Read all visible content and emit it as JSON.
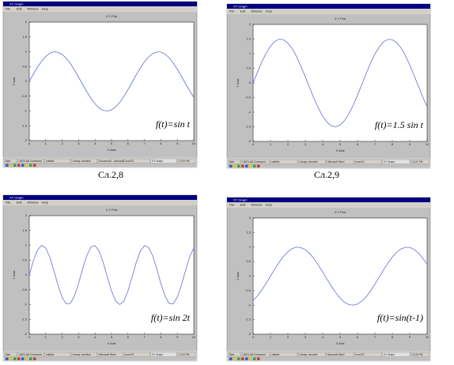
{
  "chart_data": [
    {
      "type": "line",
      "title": "X Y Plot",
      "xlabel": "X Axis",
      "ylabel": "Y Axis",
      "annotation": "f(t)=sin t",
      "color": "#6070d0",
      "xlim": [
        0,
        10
      ],
      "ylim": [
        -2,
        2
      ],
      "xticks": [
        0,
        1,
        2,
        3,
        4,
        5,
        6,
        7,
        8,
        9,
        10
      ],
      "yticks": [
        -2,
        -1.5,
        -1,
        -0.5,
        0,
        0.5,
        1,
        1.5,
        2
      ],
      "x": [
        0,
        0.25,
        0.5,
        0.75,
        1,
        1.25,
        1.5,
        1.75,
        2,
        2.25,
        2.5,
        2.75,
        3,
        3.25,
        3.5,
        3.75,
        4,
        4.25,
        4.5,
        4.75,
        5,
        5.25,
        5.5,
        5.75,
        6,
        6.25,
        6.5,
        6.75,
        7,
        7.25,
        7.5,
        7.75,
        8,
        8.25,
        8.5,
        8.75,
        9,
        9.25,
        9.5,
        9.75,
        10
      ],
      "values": [
        0,
        0.25,
        0.48,
        0.68,
        0.84,
        0.95,
        1,
        0.98,
        0.91,
        0.78,
        0.6,
        0.38,
        0.14,
        -0.11,
        -0.35,
        -0.57,
        -0.76,
        -0.9,
        -0.98,
        -1,
        -0.96,
        -0.86,
        -0.71,
        -0.51,
        -0.28,
        -0.03,
        0.22,
        0.45,
        0.66,
        0.82,
        0.94,
        0.99,
        0.99,
        0.92,
        0.8,
        0.62,
        0.41,
        0.17,
        -0.08,
        -0.32,
        -0.54
      ]
    },
    {
      "type": "line",
      "title": "X Y Plot",
      "xlabel": "X Axis",
      "ylabel": "Y Axis",
      "annotation": "f(t)=1.5 sin t",
      "color": "#6070d0",
      "xlim": [
        0,
        10
      ],
      "ylim": [
        -2,
        2
      ],
      "xticks": [
        0,
        1,
        2,
        3,
        4,
        5,
        6,
        7,
        8,
        9,
        10
      ],
      "yticks": [
        -2,
        -1.5,
        -1,
        -0.5,
        0,
        0.5,
        1,
        1.5,
        2
      ],
      "x": [
        0,
        0.25,
        0.5,
        0.75,
        1,
        1.25,
        1.5,
        1.75,
        2,
        2.25,
        2.5,
        2.75,
        3,
        3.25,
        3.5,
        3.75,
        4,
        4.25,
        4.5,
        4.75,
        5,
        5.25,
        5.5,
        5.75,
        6,
        6.25,
        6.5,
        6.75,
        7,
        7.25,
        7.5,
        7.75,
        8,
        8.25,
        8.5,
        8.75,
        9,
        9.25,
        9.5,
        9.75,
        10
      ],
      "values": [
        0,
        0.37,
        0.72,
        1.02,
        1.26,
        1.42,
        1.5,
        1.48,
        1.36,
        1.17,
        0.9,
        0.57,
        0.21,
        -0.16,
        -0.53,
        -0.86,
        -1.14,
        -1.34,
        -1.47,
        -1.5,
        -1.44,
        -1.29,
        -1.06,
        -0.77,
        -0.42,
        -0.05,
        0.32,
        0.68,
        0.99,
        1.23,
        1.41,
        1.49,
        1.48,
        1.38,
        1.2,
        0.94,
        0.62,
        0.26,
        -0.11,
        -0.48,
        -0.82
      ]
    },
    {
      "type": "line",
      "title": "X Y Plot",
      "xlabel": "X Axis",
      "ylabel": "Y Axis",
      "annotation": "f(t)=sin 2t",
      "color": "#6070d0",
      "xlim": [
        0,
        10
      ],
      "ylim": [
        -2,
        2
      ],
      "xticks": [
        0,
        1,
        2,
        3,
        4,
        5,
        6,
        7,
        8,
        9,
        10
      ],
      "yticks": [
        -2,
        -1.5,
        -1,
        -0.5,
        0,
        0.5,
        1,
        1.5,
        2
      ],
      "x": [
        0,
        0.25,
        0.5,
        0.75,
        1,
        1.25,
        1.5,
        1.75,
        2,
        2.25,
        2.5,
        2.75,
        3,
        3.25,
        3.5,
        3.75,
        4,
        4.25,
        4.5,
        4.75,
        5,
        5.25,
        5.5,
        5.75,
        6,
        6.25,
        6.5,
        6.75,
        7,
        7.25,
        7.5,
        7.75,
        8,
        8.25,
        8.5,
        8.75,
        9,
        9.25,
        9.5,
        9.75,
        10
      ],
      "values": [
        0,
        0.48,
        0.84,
        1,
        0.91,
        0.6,
        0.14,
        -0.35,
        -0.76,
        -0.98,
        -0.96,
        -0.71,
        -0.28,
        0.22,
        0.66,
        0.94,
        0.99,
        0.8,
        0.41,
        -0.08,
        -0.54,
        -0.88,
        -1,
        -0.88,
        -0.54,
        -0.07,
        0.42,
        0.8,
        0.99,
        0.93,
        0.65,
        0.21,
        -0.29,
        -0.71,
        -0.96,
        -0.98,
        -0.75,
        -0.34,
        0.15,
        0.61,
        0.91
      ]
    },
    {
      "type": "line",
      "title": "X Y Plot",
      "xlabel": "X Axis",
      "ylabel": "Y Axis",
      "annotation": "f(t)=sin(t-1)",
      "color": "#6070d0",
      "xlim": [
        0,
        10
      ],
      "ylim": [
        -2,
        2
      ],
      "xticks": [
        0,
        1,
        2,
        3,
        4,
        5,
        6,
        7,
        8,
        9,
        10
      ],
      "yticks": [
        -2,
        -1.5,
        -1,
        -0.5,
        0,
        0.5,
        1,
        1.5,
        2
      ],
      "x": [
        0,
        0.25,
        0.5,
        0.75,
        1,
        1.25,
        1.5,
        1.75,
        2,
        2.25,
        2.5,
        2.75,
        3,
        3.25,
        3.5,
        3.75,
        4,
        4.25,
        4.5,
        4.75,
        5,
        5.25,
        5.5,
        5.75,
        6,
        6.25,
        6.5,
        6.75,
        7,
        7.25,
        7.5,
        7.75,
        8,
        8.25,
        8.5,
        8.75,
        9,
        9.25,
        9.5,
        9.75,
        10
      ],
      "values": [
        -0.84,
        -0.68,
        -0.48,
        -0.25,
        0,
        0.25,
        0.48,
        0.68,
        0.84,
        0.95,
        1,
        0.98,
        0.91,
        0.78,
        0.6,
        0.38,
        0.14,
        -0.11,
        -0.35,
        -0.57,
        -0.76,
        -0.9,
        -0.98,
        -1,
        -0.96,
        -0.86,
        -0.71,
        -0.51,
        -0.28,
        -0.03,
        0.22,
        0.45,
        0.66,
        0.82,
        0.94,
        0.99,
        0.99,
        0.92,
        0.8,
        0.62,
        0.41
      ]
    }
  ],
  "windows": [
    {
      "title": "XY Graph",
      "menu": [
        "File",
        "Edit",
        "Window",
        "Help"
      ],
      "taskbar": [
        "Start",
        "MATLAB Command",
        "untitled",
        "Library: simulink",
        "Document1 - Microsoft",
        "mux/VZ",
        "XY Graph",
        "6:20 PM"
      ],
      "caption": "Сл.2,8"
    },
    {
      "title": "XY Graph",
      "menu": [
        "File",
        "Edit",
        "Window",
        "Help"
      ],
      "taskbar": [
        "Start",
        "MATLAB Command",
        "untitled",
        "Library: simulink",
        "Microsoft Word",
        "mux/VZ",
        "XY Graph",
        "6:21 PM"
      ],
      "caption": "Сл.2,9"
    },
    {
      "title": "XY Graph",
      "menu": [
        "File",
        "Edit",
        "Window",
        "Help"
      ],
      "taskbar": [
        "Start",
        "MATLAB Command",
        "untitled",
        "Library: simulink",
        "Microsoft Word",
        "mux/VZ",
        "XY Graph",
        "6:23 PM"
      ]
    },
    {
      "title": "XY Graph",
      "menu": [
        "File",
        "Edit",
        "Window",
        "Help"
      ],
      "taskbar": [
        "Start",
        "MATLAB Command",
        "untitled",
        "Library: simulink",
        "Microsoft Word",
        "mux/VZ",
        "XY Graph",
        "6:26 PM"
      ]
    }
  ]
}
